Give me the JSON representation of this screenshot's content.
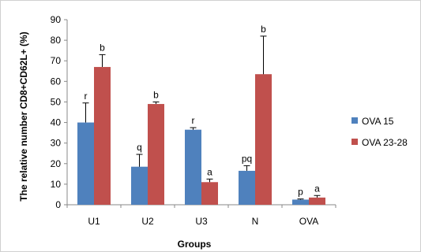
{
  "chart_data": {
    "type": "bar",
    "ylabel": "The relative number CD8+CD62L+ (%)",
    "xlabel": "Groups",
    "ylim": [
      0,
      90
    ],
    "yticks": [
      0,
      10,
      20,
      30,
      40,
      50,
      60,
      70,
      80,
      90
    ],
    "categories": [
      "U1",
      "U2",
      "U3",
      "N",
      "OVA"
    ],
    "grid": false,
    "legend_position": "right",
    "series": [
      {
        "name": "OVA 15",
        "color": "#4f81bd",
        "values": [
          40,
          18.5,
          36.5,
          16.5,
          2.5
        ],
        "errors": [
          9.5,
          6,
          1,
          2.5,
          0.3
        ],
        "labels": [
          "r",
          "q",
          "r",
          "pq",
          "p"
        ]
      },
      {
        "name": "OVA 23-28",
        "color": "#c0504d",
        "values": [
          67,
          49,
          11,
          63.5,
          3.5
        ],
        "errors": [
          6,
          1,
          1.5,
          18.5,
          1
        ],
        "labels": [
          "b",
          "b",
          "a",
          "b",
          "a"
        ]
      }
    ]
  }
}
